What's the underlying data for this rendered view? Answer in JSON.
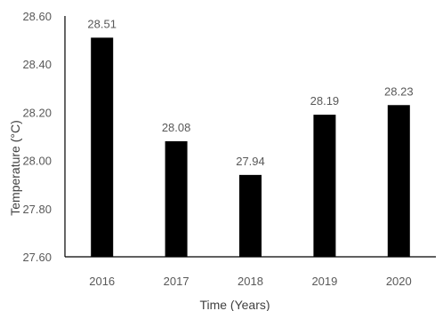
{
  "chart_data": {
    "type": "bar",
    "categories": [
      "2016",
      "2017",
      "2018",
      "2019",
      "2020"
    ],
    "values": [
      28.51,
      28.08,
      27.94,
      28.19,
      28.23
    ],
    "data_labels": [
      "28.51",
      "28.08",
      "27.94",
      "28.19",
      "28.23"
    ],
    "xlabel": "Time (Years)",
    "ylabel": "Temperature (°C)",
    "ylim": [
      27.6,
      28.6
    ],
    "yticks": [
      27.6,
      27.8,
      28.0,
      28.2,
      28.4,
      28.6
    ],
    "ytick_labels": [
      "27.60",
      "27.80",
      "28.00",
      "28.20",
      "28.40",
      "28.60"
    ],
    "grid": false,
    "bar_color": "#000000"
  }
}
